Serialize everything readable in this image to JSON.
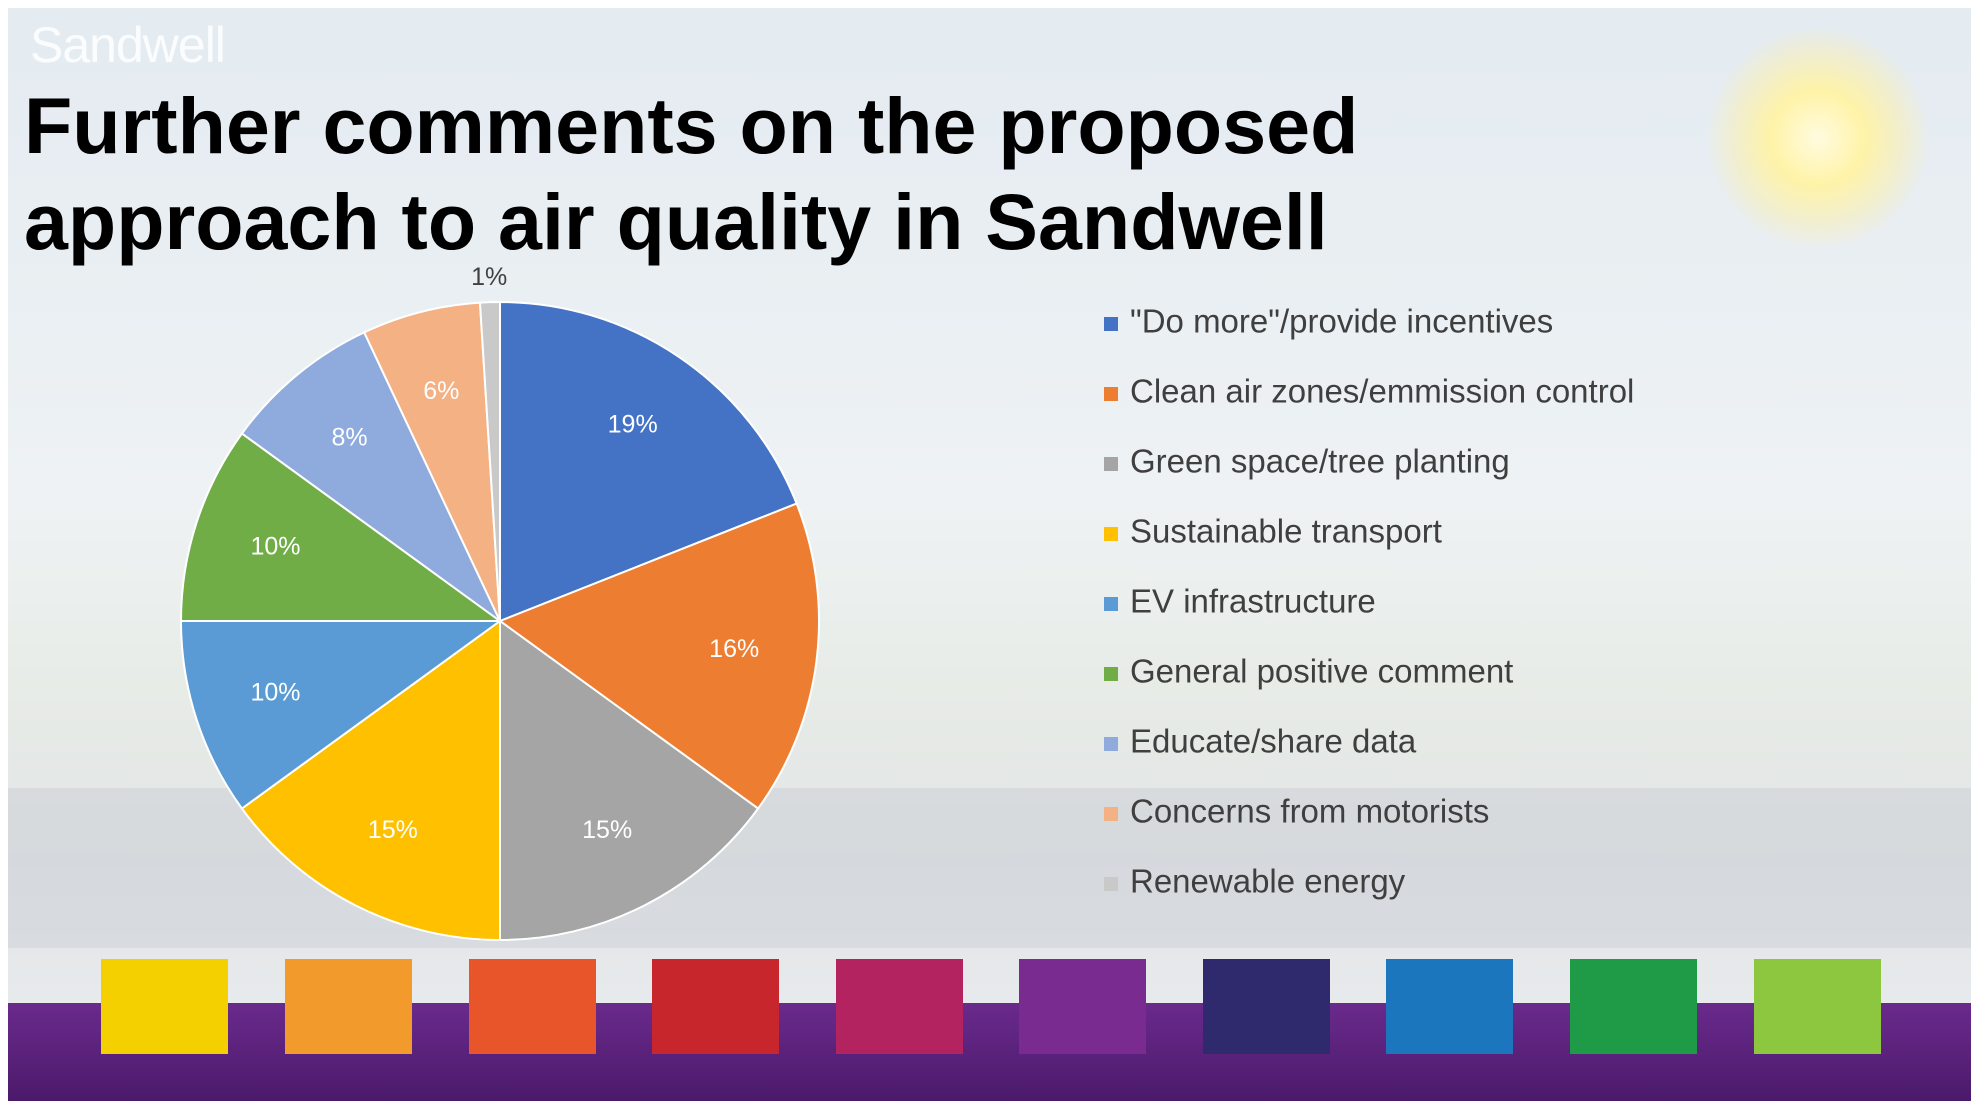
{
  "logo": "Sandwell",
  "chart_data": {
    "type": "pie",
    "title": "Further comments on the proposed approach to air quality in Sandwell",
    "categories": [
      "\"Do more\"/provide incentives",
      "Clean air zones/emmission control",
      "Green space/tree planting",
      "Sustainable transport",
      "EV infrastructure",
      "General positive comment",
      "Educate/share data",
      "Concerns from motorists",
      "Renewable energy"
    ],
    "values": [
      19,
      16,
      15,
      15,
      10,
      10,
      8,
      6,
      1
    ],
    "value_labels": [
      "19%",
      "16%",
      "15%",
      "15%",
      "10%",
      "10%",
      "8%",
      "6%",
      "1%"
    ],
    "colors": [
      "#4472c4",
      "#ed7d31",
      "#a5a5a5",
      "#ffc000",
      "#5b9bd5",
      "#70ad47",
      "#8faadc",
      "#f4b183",
      "#c9c9c9"
    ],
    "legend": "right"
  }
}
